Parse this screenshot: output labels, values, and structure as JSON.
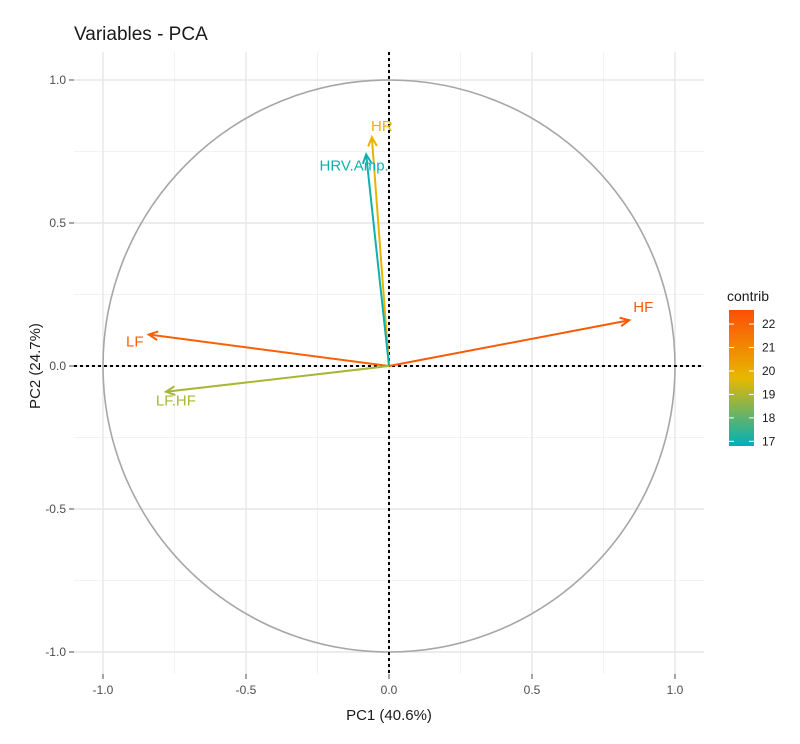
{
  "chart_data": {
    "type": "scatter",
    "title": "Variables - PCA",
    "xlabel": "PC1 (40.6%)",
    "ylabel": "PC2 (24.7%)",
    "xlim": [
      -1.0,
      1.0
    ],
    "ylim": [
      -1.0,
      1.0
    ],
    "x_ticks": [
      -1.0,
      -0.5,
      0.0,
      0.5,
      1.0
    ],
    "x_tick_labels": [
      "-1.0",
      "-0.5",
      "0.0",
      "0.5",
      "1.0"
    ],
    "y_ticks": [
      -1.0,
      -0.5,
      0.0,
      0.5,
      1.0
    ],
    "y_tick_labels": [
      "-1.0",
      "-0.5",
      "0.0",
      "0.5",
      "1.0"
    ],
    "grid": true,
    "unit_circle": true,
    "variables": [
      {
        "name": "HR",
        "x": -0.06,
        "y": 0.8,
        "contrib": 19.8
      },
      {
        "name": "HRV.Amp.",
        "x": -0.08,
        "y": 0.74,
        "contrib": 17.0
      },
      {
        "name": "HF",
        "x": 0.84,
        "y": 0.16,
        "contrib": 22.3
      },
      {
        "name": "LF",
        "x": -0.84,
        "y": 0.11,
        "contrib": 22.1
      },
      {
        "name": "LF.HF",
        "x": -0.78,
        "y": -0.09,
        "contrib": 18.9
      }
    ],
    "legend": {
      "title": "contrib",
      "placement": "right",
      "min": 16.8,
      "max": 22.6,
      "ticks": [
        22,
        21,
        20,
        19,
        18,
        17
      ],
      "tick_labels": [
        "22",
        "21",
        "20",
        "19",
        "18",
        "17"
      ],
      "colors": [
        "#00AFBB",
        "#E7B800",
        "#FC4E07"
      ]
    }
  }
}
